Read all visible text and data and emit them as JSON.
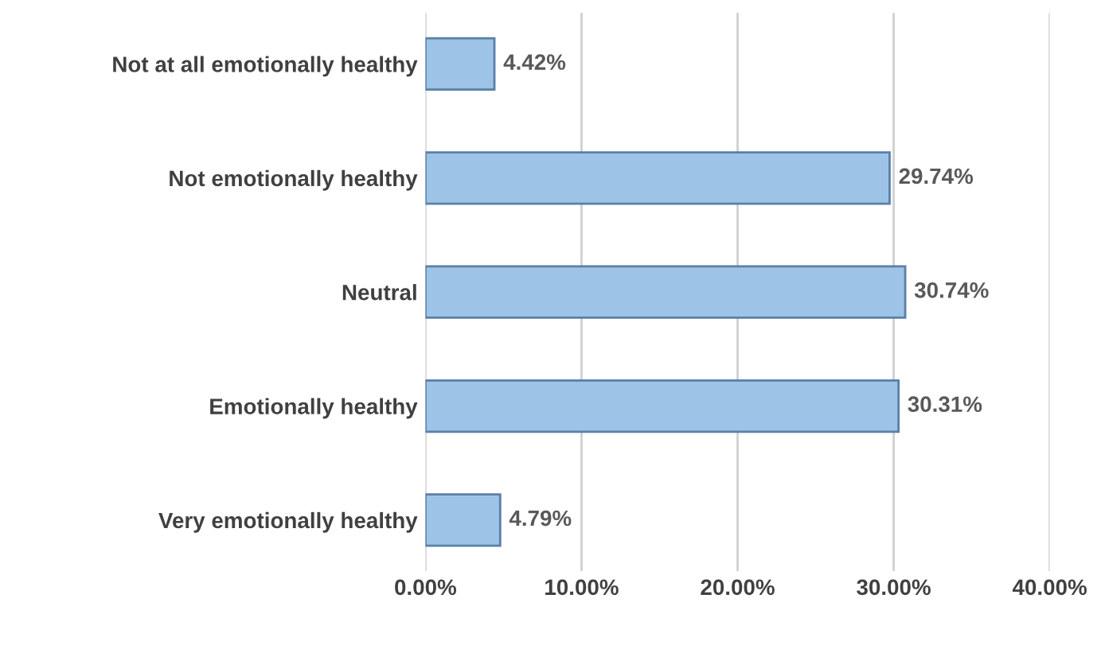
{
  "chart_data": {
    "type": "bar",
    "orientation": "horizontal",
    "categories": [
      "Not at all emotionally healthy",
      "Not emotionally healthy",
      "Neutral",
      "Emotionally healthy",
      "Very emotionally healthy"
    ],
    "values": [
      4.42,
      29.74,
      30.74,
      30.31,
      4.79
    ],
    "value_labels": [
      "4.42%",
      "29.74%",
      "30.74%",
      "30.31%",
      "4.79%"
    ],
    "color": "#9dc3e6",
    "xlim": [
      0,
      40
    ],
    "xticks": [
      {
        "value": 0,
        "label": "0.00%"
      },
      {
        "value": 10,
        "label": "10.00%"
      },
      {
        "value": 20,
        "label": "20.00%"
      },
      {
        "value": 30,
        "label": "30.00%"
      },
      {
        "value": 40,
        "label": "40.00%"
      }
    ],
    "grid": "x"
  }
}
